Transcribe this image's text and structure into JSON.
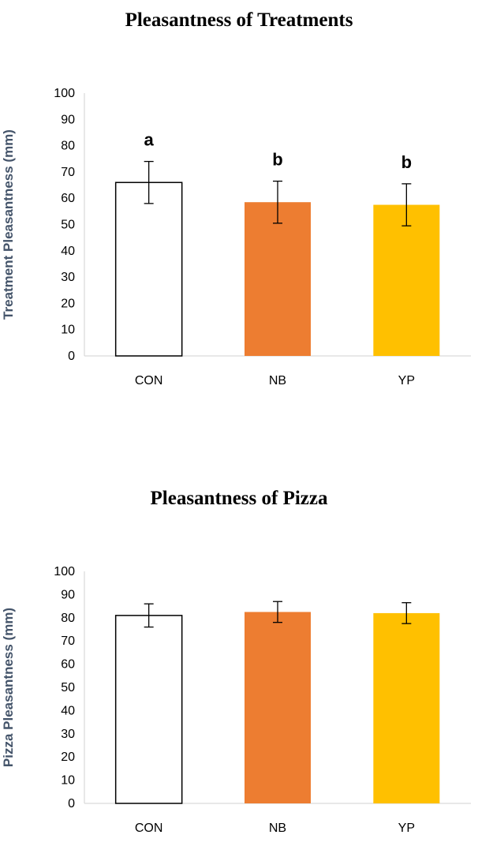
{
  "chart_data": [
    {
      "type": "bar",
      "title": "Pleasantness of Treatments",
      "xlabel": "",
      "ylabel": "Treatment Pleasantness (mm)",
      "categories": [
        "CON",
        "NB",
        "YP"
      ],
      "values": [
        66,
        58.5,
        57.5
      ],
      "error": [
        8,
        8,
        8
      ],
      "significance_labels": [
        "a",
        "b",
        "b"
      ],
      "bar_colors": [
        "#ffffff",
        "#ED7D31",
        "#FFC000"
      ],
      "bar_outline": "#000000",
      "ylim": [
        0,
        100
      ],
      "yticks": [
        0,
        10,
        20,
        30,
        40,
        50,
        60,
        70,
        80,
        90,
        100
      ],
      "grid": false
    },
    {
      "type": "bar",
      "title": "Pleasantness of Pizza",
      "xlabel": "",
      "ylabel": "Pizza Pleasantness (mm)",
      "categories": [
        "CON",
        "NB",
        "YP"
      ],
      "values": [
        81,
        82.5,
        82
      ],
      "error": [
        5,
        4.5,
        4.5
      ],
      "bar_colors": [
        "#ffffff",
        "#ED7D31",
        "#FFC000"
      ],
      "bar_outline": "#000000",
      "ylim": [
        0,
        100
      ],
      "yticks": [
        0,
        10,
        20,
        30,
        40,
        50,
        60,
        70,
        80,
        90,
        100
      ],
      "grid": false
    }
  ],
  "style": {
    "axis_color": "#D9D9D9",
    "ylabel_color": "#44546A",
    "tick_label_color": "#000000"
  }
}
